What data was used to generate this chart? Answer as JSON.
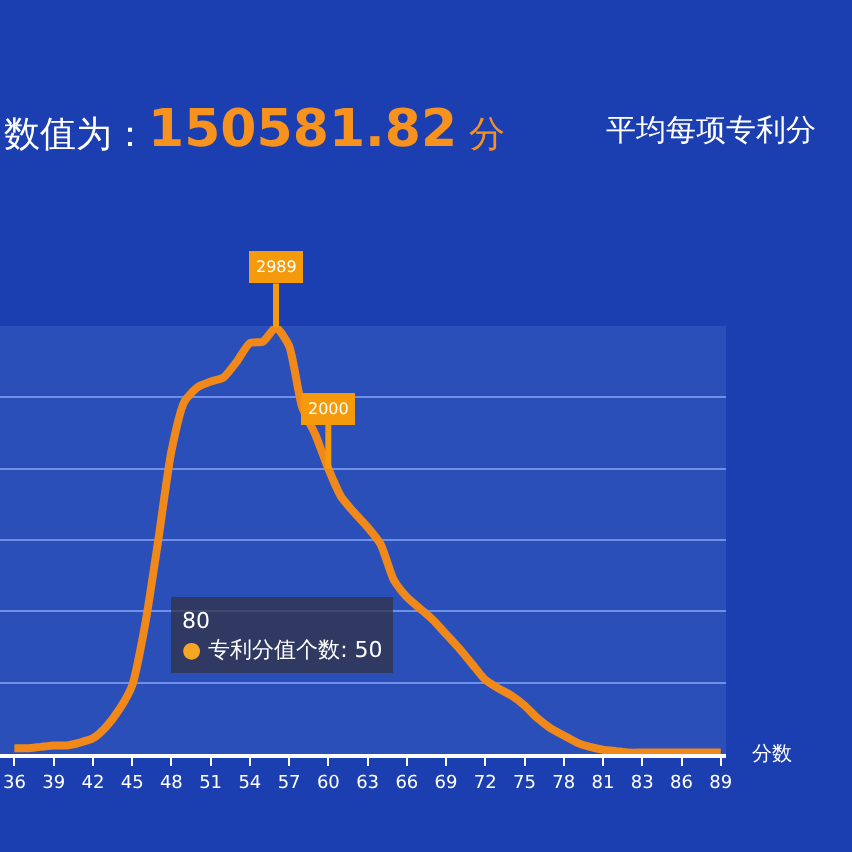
{
  "chart_data": {
    "type": "line",
    "title": "数值为：150581.82 分",
    "subtitle": "平均每项专利分",
    "xlabel": "分数",
    "categories": [
      "36",
      null,
      null,
      "39",
      null,
      null,
      "42",
      null,
      null,
      "45",
      null,
      null,
      "48",
      null,
      null,
      "51",
      null,
      null,
      "54",
      null,
      null,
      "57",
      null,
      null,
      "60",
      null,
      null,
      "63",
      null,
      null,
      "66",
      null,
      null,
      "69",
      null,
      null,
      "72",
      null,
      null,
      "75",
      null,
      null,
      "78",
      null,
      null,
      "81",
      null,
      null,
      "83",
      null,
      null,
      "86",
      null,
      null,
      "89"
    ],
    "series": [
      {
        "color": "#f0891a",
        "values": [
          40,
          40,
          50,
          60,
          60,
          80,
          110,
          190,
          310,
          480,
          910,
          1500,
          2120,
          2470,
          2570,
          2610,
          2640,
          2750,
          2880,
          2890,
          2989,
          2860,
          2430,
          2240,
          2000,
          1800,
          1690,
          1590,
          1470,
          1220,
          1100,
          1020,
          940,
          840,
          740,
          630,
          520,
          460,
          410,
          340,
          250,
          180,
          130,
          80,
          50,
          30,
          20,
          10,
          10,
          10,
          10,
          10,
          10,
          10,
          10
        ],
        "value_labels": [
          null,
          null,
          null,
          null,
          null,
          null,
          null,
          null,
          null,
          null,
          null,
          null,
          null,
          null,
          null,
          null,
          null,
          null,
          null,
          null,
          "2989",
          null,
          null,
          null,
          "2000",
          null,
          null,
          null,
          null,
          null,
          null,
          null,
          null,
          null,
          null,
          null,
          null,
          null,
          null,
          null,
          null,
          null,
          null,
          null,
          null,
          null,
          null,
          null,
          null,
          null,
          null,
          null,
          null,
          null,
          null
        ]
      }
    ],
    "ylim": [
      0,
      3000
    ],
    "yticks": [
      {
        "value": 0,
        "label": null
      },
      {
        "value": 500,
        "label": null
      },
      {
        "value": 1000,
        "label": null
      },
      {
        "value": 1500,
        "label": null
      },
      {
        "value": 2000,
        "label": null
      },
      {
        "value": 2500,
        "label": null
      },
      {
        "value": 3000,
        "label": null
      }
    ],
    "tick_labels": "x",
    "grid": "y",
    "marker": "none",
    "line_style": "solid",
    "annotations": [
      "80",
      "● 专利分值个数: 50"
    ]
  }
}
